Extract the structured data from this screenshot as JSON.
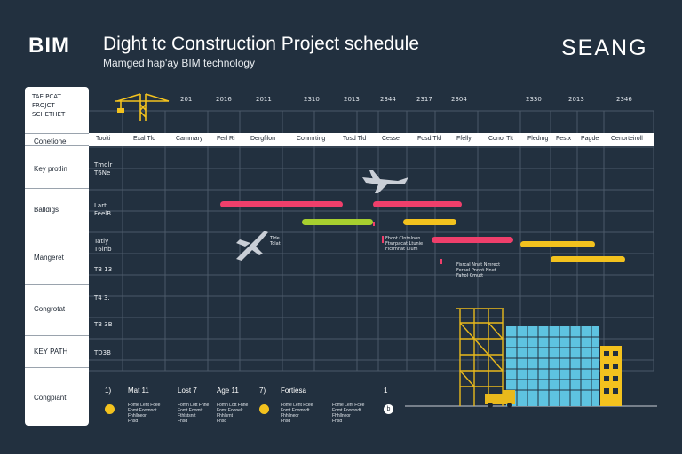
{
  "header": {
    "brand": "BIM",
    "title": "Dight tc Construction Project schedule",
    "subtitle": "Mamged hap'ay BIM technology",
    "logo": "SEANG"
  },
  "sidebar": {
    "schedule_label": [
      "TAE PCAT",
      "FROJCT",
      "SCHETHET"
    ],
    "rows": [
      "Conetione",
      "Key protlin",
      "Balldigs",
      "Mangeret",
      "Congrotat",
      "KEY PATH",
      "Congpiant"
    ]
  },
  "years": [
    "201",
    "2016",
    "2011",
    "2310",
    "2013",
    "2344",
    "2317",
    "2304",
    "2330",
    "2013",
    "2346"
  ],
  "columns": [
    "Tooiti",
    "Exal Tld",
    "Cammary",
    "Ferl Ri",
    "Dergfilon",
    "Conmrting",
    "Tosd Tld",
    "Cesse",
    "Fosd Tld",
    "Ffelly",
    "Conol Tlt",
    "Fledmg",
    "Festx",
    "Pagde",
    "Cenorteiroll"
  ],
  "row_codes": [
    {
      "lines": [
        "Tmolr",
        "T6Ne"
      ]
    },
    {
      "lines": [
        "Lart",
        "FeelB"
      ]
    },
    {
      "lines": [
        "Tatly",
        "T6lnb"
      ]
    },
    {
      "lines": [
        "TB 13"
      ]
    },
    {
      "lines": [
        "T4 3."
      ]
    },
    {
      "lines": [
        "TB 3B"
      ]
    },
    {
      "lines": [
        "TD3B"
      ]
    }
  ],
  "notes": {
    "plane_label": [
      "Tlde",
      "Tolat"
    ],
    "note_a": [
      "Fhcot Clntnlnon",
      "Ftwrpacat Ltunie",
      "Flcrmnat Clum"
    ],
    "note_b": [
      "Fisrcal Nnat Nmrect",
      "Feraol Pnnnt Nnet",
      "Fahol Cmutt"
    ]
  },
  "legend": {
    "numbers": [
      "1)",
      "7)",
      "1"
    ],
    "items": [
      {
        "title": "Mat 11",
        "text": [
          "Fome Lent Fcee",
          "Fomt Foomndt",
          "Fhhllneor",
          "Fnsd"
        ]
      },
      {
        "title": "Lost 7",
        "text": [
          "Fomn Lott Fnne",
          "Fomt Foomtt",
          "Fthlstsnrt",
          "Fnsd"
        ]
      },
      {
        "title": "Age 11",
        "text": [
          "Fomn Lott Fnne",
          "Fomt Foonelt",
          "Fhhlsrnt",
          "Fnsd"
        ]
      },
      {
        "title": "Fortiesa",
        "text": [
          "Fome Lent Fcee",
          "Fomt Foomndt",
          "Fhhllneor",
          "Fnsd"
        ]
      },
      {
        "title": "",
        "text": [
          "Fome Lent Fcee",
          "Fomt Foomndt",
          "Fhhllneor",
          "Fnsd"
        ]
      }
    ],
    "markers": [
      "b"
    ]
  },
  "colors": {
    "background": "#22303f",
    "grid": "#4b5968",
    "pink": "#ef3f6b",
    "lime": "#a6cf2f",
    "yellow": "#f3c21e",
    "steel": "#e9b91c",
    "glass": "#5ec3e0"
  }
}
